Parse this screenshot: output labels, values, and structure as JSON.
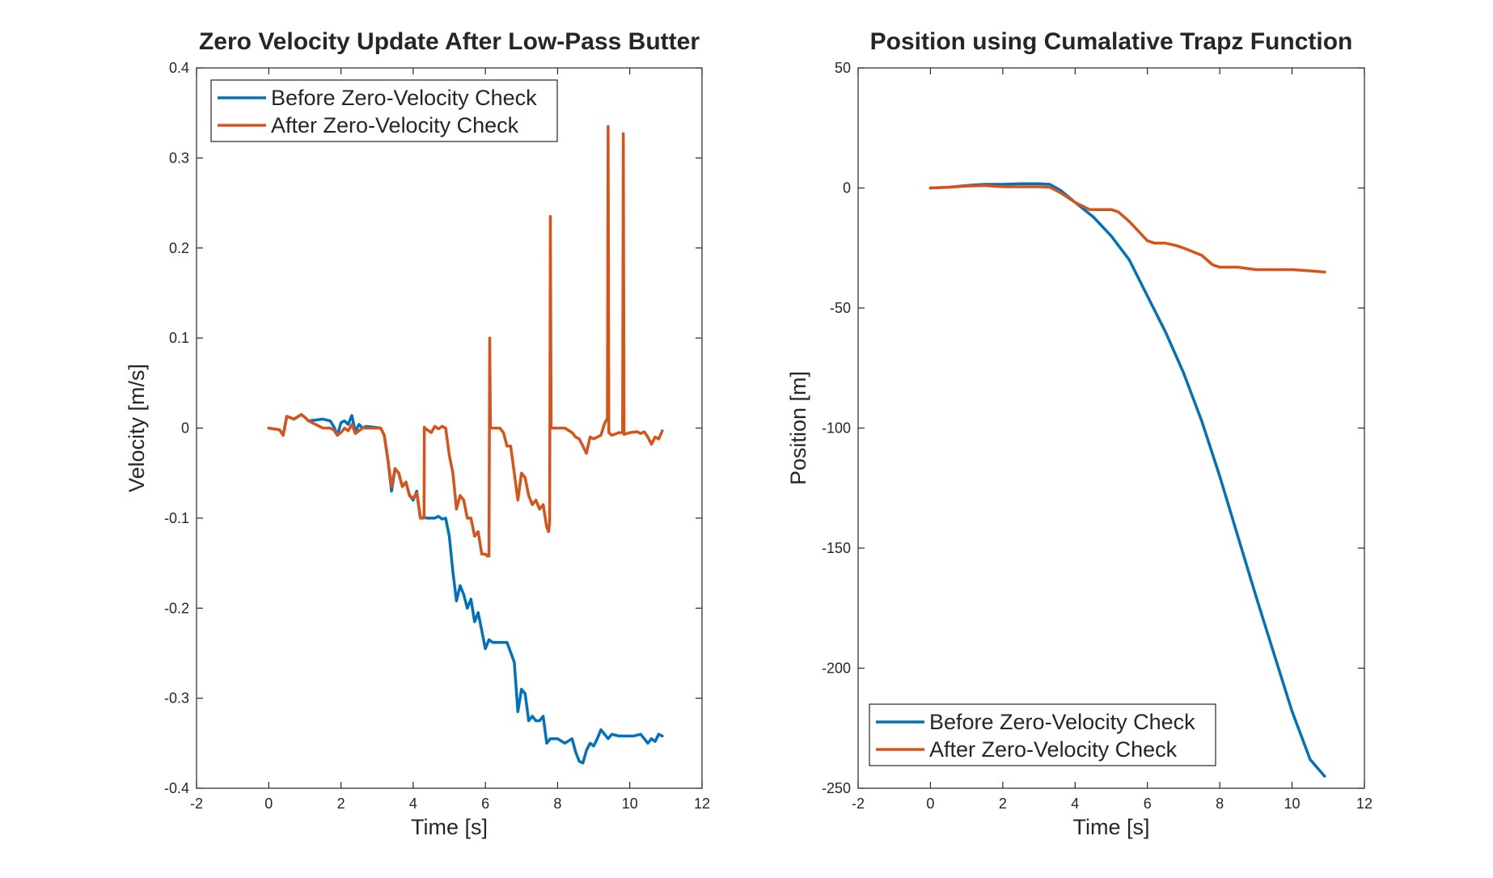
{
  "chart_data": [
    {
      "type": "line",
      "title": "Zero Velocity Update After Low-Pass Butter",
      "xlabel": "Time [s]",
      "ylabel": "Velocity [m/s]",
      "xlim": [
        -2,
        12
      ],
      "ylim": [
        -0.4,
        0.4
      ],
      "xticks": [
        -2,
        0,
        2,
        4,
        6,
        8,
        10,
        12
      ],
      "yticks": [
        -0.4,
        -0.3,
        -0.2,
        -0.1,
        0,
        0.1,
        0.2,
        0.3,
        0.4
      ],
      "xtick_labels": [
        "-2",
        "0",
        "2",
        "4",
        "6",
        "8",
        "10",
        "12"
      ],
      "ytick_labels": [
        "-0.4",
        "-0.3",
        "-0.2",
        "-0.1",
        "0",
        "0.1",
        "0.2",
        "0.3",
        "0.4"
      ],
      "grid": false,
      "legend": "top-left",
      "series": [
        {
          "name": "Before Zero-Velocity Check",
          "color": "#0072BD",
          "x": [
            0,
            0.3,
            0.4,
            0.5,
            0.7,
            0.9,
            1.0,
            1.1,
            1.5,
            1.7,
            1.8,
            1.9,
            2.0,
            2.1,
            2.2,
            2.3,
            2.4,
            2.5,
            2.6,
            2.7,
            2.9,
            3.1,
            3.2,
            3.3,
            3.4,
            3.5,
            3.6,
            3.7,
            3.8,
            3.9,
            4.0,
            4.1,
            4.2,
            4.3,
            4.4,
            4.6,
            4.7,
            4.8,
            4.9,
            5.0,
            5.1,
            5.2,
            5.3,
            5.4,
            5.5,
            5.6,
            5.7,
            5.8,
            5.9,
            6.0,
            6.1,
            6.2,
            6.4,
            6.6,
            6.8,
            6.9,
            7.0,
            7.1,
            7.2,
            7.3,
            7.4,
            7.5,
            7.6,
            7.7,
            7.8,
            8.0,
            8.2,
            8.4,
            8.5,
            8.6,
            8.7,
            8.8,
            8.9,
            9.0,
            9.1,
            9.2,
            9.3,
            9.4,
            9.5,
            9.7,
            9.9,
            10.1,
            10.3,
            10.4,
            10.5,
            10.6,
            10.7,
            10.8,
            10.9
          ],
          "values": [
            0.0,
            -0.002,
            -0.008,
            0.013,
            0.01,
            0.015,
            0.012,
            0.008,
            0.01,
            0.008,
            0.002,
            -0.008,
            0.006,
            0.008,
            0.004,
            0.014,
            -0.004,
            0.004,
            0.0,
            0.002,
            0.001,
            0.0,
            -0.008,
            -0.035,
            -0.07,
            -0.045,
            -0.05,
            -0.065,
            -0.06,
            -0.075,
            -0.08,
            -0.07,
            -0.1,
            -0.099,
            -0.1,
            -0.1,
            -0.098,
            -0.101,
            -0.1,
            -0.12,
            -0.16,
            -0.192,
            -0.175,
            -0.185,
            -0.2,
            -0.19,
            -0.215,
            -0.205,
            -0.225,
            -0.245,
            -0.235,
            -0.238,
            -0.238,
            -0.238,
            -0.26,
            -0.315,
            -0.29,
            -0.295,
            -0.325,
            -0.32,
            -0.325,
            -0.325,
            -0.32,
            -0.35,
            -0.345,
            -0.345,
            -0.35,
            -0.345,
            -0.36,
            -0.37,
            -0.372,
            -0.358,
            -0.35,
            -0.353,
            -0.345,
            -0.335,
            -0.34,
            -0.345,
            -0.34,
            -0.342,
            -0.342,
            -0.342,
            -0.34,
            -0.345,
            -0.35,
            -0.345,
            -0.348,
            -0.34,
            -0.342
          ]
        },
        {
          "name": "After Zero-Velocity Check",
          "color": "#D95319",
          "x": [
            0,
            0.3,
            0.4,
            0.5,
            0.7,
            0.9,
            1.0,
            1.1,
            1.5,
            1.7,
            1.8,
            1.9,
            2.0,
            2.1,
            2.2,
            2.3,
            2.4,
            2.5,
            2.6,
            2.7,
            2.9,
            3.1,
            3.2,
            3.3,
            3.4,
            3.5,
            3.6,
            3.7,
            3.8,
            3.9,
            4.0,
            4.1,
            4.2,
            4.3,
            4.31,
            4.32,
            4.5,
            4.6,
            4.7,
            4.8,
            4.9,
            5.0,
            5.1,
            5.2,
            5.3,
            5.4,
            5.5,
            5.6,
            5.7,
            5.8,
            5.9,
            6.0,
            6.05,
            6.1,
            6.12,
            6.14,
            6.2,
            6.4,
            6.5,
            6.6,
            6.7,
            6.8,
            6.9,
            7.0,
            7.1,
            7.2,
            7.3,
            7.4,
            7.5,
            7.6,
            7.7,
            7.75,
            7.78,
            7.8,
            7.82,
            7.9,
            8.0,
            8.2,
            8.4,
            8.5,
            8.6,
            8.7,
            8.8,
            8.9,
            9.0,
            9.1,
            9.2,
            9.3,
            9.38,
            9.4,
            9.42,
            9.5,
            9.7,
            9.8,
            9.82,
            9.84,
            10.0,
            10.2,
            10.3,
            10.4,
            10.5,
            10.6,
            10.7,
            10.8,
            10.9
          ],
          "values": [
            0.0,
            -0.002,
            -0.008,
            0.013,
            0.01,
            0.015,
            0.012,
            0.008,
            0.0,
            0.0,
            -0.002,
            -0.008,
            -0.005,
            0.0,
            -0.003,
            0.004,
            -0.006,
            -0.003,
            0.0,
            0.0,
            0.0,
            0.0,
            -0.008,
            -0.035,
            -0.065,
            -0.045,
            -0.05,
            -0.065,
            -0.06,
            -0.075,
            -0.078,
            -0.072,
            -0.1,
            -0.1,
            0.001,
            0.0,
            -0.005,
            0.002,
            -0.001,
            0.002,
            0.0,
            -0.03,
            -0.05,
            -0.09,
            -0.075,
            -0.08,
            -0.1,
            -0.1,
            -0.12,
            -0.115,
            -0.14,
            -0.14,
            -0.142,
            -0.142,
            0.1,
            0.0,
            0.0,
            0.0,
            -0.005,
            -0.02,
            -0.02,
            -0.05,
            -0.08,
            -0.05,
            -0.055,
            -0.075,
            -0.085,
            -0.08,
            -0.09,
            -0.085,
            -0.11,
            -0.115,
            -0.105,
            0.235,
            0.0,
            0.0,
            0.0,
            0.0,
            -0.005,
            -0.01,
            -0.012,
            -0.02,
            -0.028,
            -0.01,
            -0.012,
            -0.01,
            -0.008,
            0.005,
            0.011,
            0.335,
            -0.005,
            -0.008,
            -0.005,
            -0.005,
            0.327,
            -0.007,
            -0.005,
            -0.004,
            -0.006,
            -0.004,
            -0.01,
            -0.018,
            -0.01,
            -0.012,
            -0.003
          ]
        }
      ]
    },
    {
      "type": "line",
      "title": "Position using Cumalative Trapz Function",
      "xlabel": "Time [s]",
      "ylabel": "Position [m]",
      "xlim": [
        -2,
        12
      ],
      "ylim": [
        -250,
        50
      ],
      "xticks": [
        -2,
        0,
        2,
        4,
        6,
        8,
        10,
        12
      ],
      "yticks": [
        -250,
        -200,
        -150,
        -100,
        -50,
        0,
        50
      ],
      "xtick_labels": [
        "-2",
        "0",
        "2",
        "4",
        "6",
        "8",
        "10",
        "12"
      ],
      "ytick_labels": [
        "-250",
        "-200",
        "-150",
        "-100",
        "-50",
        "0",
        "50"
      ],
      "grid": false,
      "legend": "bottom-left",
      "series": [
        {
          "name": "Before Zero-Velocity Check",
          "color": "#0072BD",
          "x": [
            0,
            0.5,
            1.0,
            1.5,
            2.0,
            2.5,
            3.0,
            3.3,
            3.6,
            4.0,
            4.5,
            5.0,
            5.5,
            6.0,
            6.5,
            7.0,
            7.5,
            8.0,
            8.5,
            9.0,
            9.5,
            10.0,
            10.5,
            10.9
          ],
          "values": [
            0,
            0.3,
            1.0,
            1.5,
            1.5,
            1.8,
            1.8,
            1.5,
            -1,
            -6,
            -12,
            -20,
            -30,
            -45,
            -60,
            -77,
            -97,
            -120,
            -145,
            -170,
            -194,
            -218,
            -238,
            -245
          ]
        },
        {
          "name": "After Zero-Velocity Check",
          "color": "#D95319",
          "x": [
            0,
            0.5,
            1.0,
            1.5,
            2.0,
            2.5,
            3.0,
            3.3,
            3.6,
            4.0,
            4.4,
            4.6,
            5.0,
            5.2,
            5.5,
            6.0,
            6.2,
            6.5,
            6.8,
            7.0,
            7.5,
            7.8,
            8.0,
            8.5,
            9.0,
            9.5,
            10.0,
            10.5,
            10.9
          ],
          "values": [
            0,
            0.3,
            0.8,
            1.0,
            0.5,
            0.5,
            0.5,
            0.3,
            -2,
            -6,
            -9,
            -9,
            -9,
            -10,
            -14,
            -22,
            -23,
            -23,
            -24,
            -25,
            -28,
            -32,
            -33,
            -33,
            -34,
            -34,
            -34,
            -34.5,
            -35
          ]
        }
      ]
    }
  ]
}
